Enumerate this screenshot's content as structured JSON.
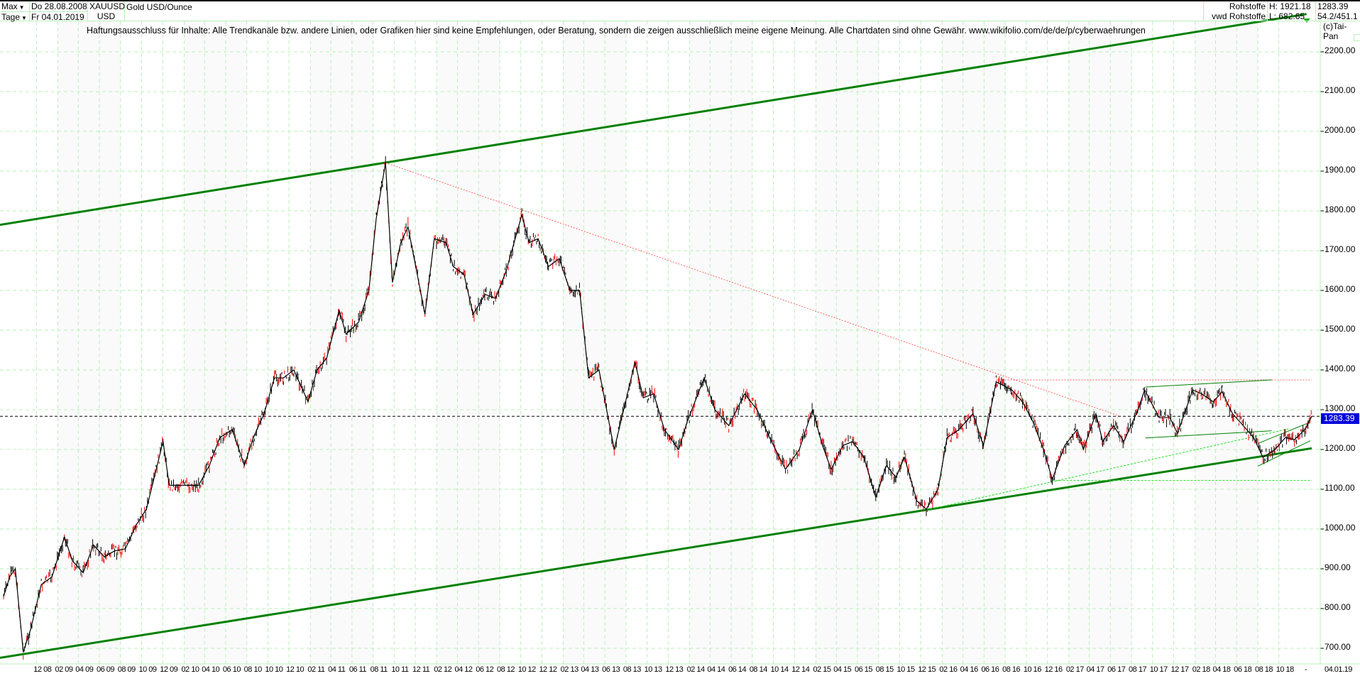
{
  "header": {
    "range_label": "Max",
    "interval_label": "Tage",
    "start_date": "Do 28.08.2008",
    "end_date": "Fr 04.01.2019",
    "symbol": "XAUUSD",
    "currency": "USD",
    "instrument_name": "Gold USD/Ounce",
    "category": "Rohstoffe",
    "source": "vwd Rohstoffe",
    "high": "H: 1921.18",
    "low": "L: 682.65",
    "last": "1283.39",
    "extra": "54.2/451.1"
  },
  "disclaimer": "Haftungsausschluss für Inhalte: Alle Trendkanäle bzw. andere Linien, oder Grafiken hier sind keine Empfehlungen, oder Beratung, sondern die zeigen ausschließlich meine eigene Meinung. Alle Chartdaten sind ohne Gewähr.  www.wikifolio.com/de/de/p/cyberwaehrungen",
  "copyright": "(c)Tai-Pan",
  "colors": {
    "grid": "#b8f0b8",
    "channel": "#008000",
    "down_candle": "#ff0000",
    "up_candle": "#000000",
    "last_price": "#0000dd",
    "resistance": "#ff6060"
  },
  "chart_data": {
    "type": "line",
    "title": "Gold USD/Ounce",
    "ylim": [
      700,
      2200
    ],
    "yticks": [
      "700.00",
      "800.00",
      "900.00",
      "1000.00",
      "1100.00",
      "1200.00",
      "1300.00",
      "1400.00",
      "1500.00",
      "1600.00",
      "1700.00",
      "1800.00",
      "1900.00",
      "2000.00",
      "2100.00",
      "2200.00"
    ],
    "xlim": [
      "2008-08-28",
      "2019-01-04"
    ],
    "xticks": [
      "12 08",
      "02 09",
      "04 09",
      "06 09",
      "08 09",
      "10 09",
      "12 09",
      "02 10",
      "04 10",
      "06 10",
      "08 10",
      "10 10",
      "12 10",
      "02 11",
      "04 11",
      "06 11",
      "08 11",
      "10 11",
      "12 11",
      "02 12",
      "04 12",
      "06 12",
      "08 12",
      "10 12",
      "12 12",
      "02 13",
      "04 13",
      "06 13",
      "08 13",
      "10 13",
      "12 13",
      "02 14",
      "04 14",
      "06 14",
      "08 14",
      "10 14",
      "12 14",
      "02 15",
      "04 15",
      "06 15",
      "08 15",
      "10 15",
      "12 15",
      "02 16",
      "04 16",
      "06 16",
      "08 16",
      "10 16",
      "12 16",
      "02 17",
      "04 17",
      "06 17",
      "08 17",
      "10 17",
      "12 17",
      "02 18",
      "04 18",
      "06 18",
      "08 18",
      "10 18"
    ],
    "xtick_end": "04.01.19",
    "xtick_sep": "-",
    "grid": true,
    "last_value": 1283.39,
    "series": [
      {
        "dates": [
          "2008-08-28",
          "2008-09-15",
          "2008-10-01",
          "2008-10-24",
          "2008-11-15",
          "2008-12-15",
          "2009-01-15",
          "2009-02-20",
          "2009-03-15",
          "2009-04-15",
          "2009-05-15",
          "2009-06-15",
          "2009-07-15",
          "2009-08-15",
          "2009-09-15",
          "2009-10-15",
          "2009-12-02",
          "2009-12-20",
          "2010-01-15",
          "2010-02-15",
          "2010-03-15",
          "2010-04-15",
          "2010-05-15",
          "2010-06-20",
          "2010-07-25",
          "2010-08-20",
          "2010-09-20",
          "2010-10-20",
          "2010-11-15",
          "2010-12-15",
          "2011-01-25",
          "2011-02-20",
          "2011-03-20",
          "2011-04-25",
          "2011-05-15",
          "2011-06-20",
          "2011-07-20",
          "2011-08-10",
          "2011-09-06",
          "2011-09-26",
          "2011-10-20",
          "2011-11-10",
          "2011-12-29",
          "2012-01-25",
          "2012-02-28",
          "2012-03-20",
          "2012-04-20",
          "2012-05-16",
          "2012-06-20",
          "2012-07-20",
          "2012-08-20",
          "2012-10-04",
          "2012-10-25",
          "2012-11-20",
          "2012-12-20",
          "2013-01-20",
          "2013-02-20",
          "2013-03-20",
          "2013-04-15",
          "2013-05-15",
          "2013-06-28",
          "2013-08-27",
          "2013-09-20",
          "2013-10-20",
          "2013-11-20",
          "2013-12-31",
          "2014-01-25",
          "2014-03-15",
          "2014-04-15",
          "2014-05-25",
          "2014-07-10",
          "2014-08-15",
          "2014-09-20",
          "2014-11-05",
          "2014-12-15",
          "2015-01-22",
          "2015-02-20",
          "2015-03-17",
          "2015-04-20",
          "2015-05-18",
          "2015-06-20",
          "2015-07-24",
          "2015-08-24",
          "2015-09-20",
          "2015-10-15",
          "2015-11-20",
          "2015-12-17",
          "2016-01-20",
          "2016-02-15",
          "2016-03-20",
          "2016-04-30",
          "2016-05-30",
          "2016-07-06",
          "2016-08-20",
          "2016-09-20",
          "2016-10-20",
          "2016-11-20",
          "2016-12-15",
          "2017-01-20",
          "2017-02-25",
          "2017-03-15",
          "2017-04-20",
          "2017-05-10",
          "2017-06-10",
          "2017-07-10",
          "2017-08-20",
          "2017-09-08",
          "2017-10-20",
          "2017-11-20",
          "2017-12-12",
          "2018-01-25",
          "2018-02-20",
          "2018-03-25",
          "2018-04-20",
          "2018-05-20",
          "2018-06-20",
          "2018-07-20",
          "2018-08-16",
          "2018-09-20",
          "2018-10-20",
          "2018-11-15",
          "2018-12-15",
          "2019-01-04"
        ],
        "values": [
          830,
          880,
          900,
          690,
          750,
          860,
          880,
          980,
          920,
          890,
          960,
          930,
          945,
          950,
          1010,
          1050,
          1220,
          1110,
          1110,
          1110,
          1110,
          1160,
          1230,
          1250,
          1160,
          1230,
          1290,
          1380,
          1380,
          1400,
          1320,
          1400,
          1430,
          1550,
          1490,
          1520,
          1600,
          1780,
          1921,
          1620,
          1720,
          1760,
          1540,
          1730,
          1720,
          1660,
          1640,
          1540,
          1590,
          1580,
          1650,
          1790,
          1720,
          1730,
          1660,
          1680,
          1600,
          1600,
          1380,
          1400,
          1200,
          1420,
          1330,
          1340,
          1250,
          1200,
          1270,
          1380,
          1300,
          1260,
          1340,
          1300,
          1230,
          1150,
          1200,
          1300,
          1210,
          1150,
          1210,
          1220,
          1180,
          1080,
          1160,
          1130,
          1180,
          1070,
          1050,
          1100,
          1230,
          1250,
          1290,
          1210,
          1370,
          1350,
          1320,
          1270,
          1200,
          1125,
          1210,
          1250,
          1200,
          1290,
          1220,
          1260,
          1220,
          1300,
          1350,
          1280,
          1280,
          1240,
          1350,
          1340,
          1320,
          1345,
          1290,
          1260,
          1230,
          1180,
          1200,
          1230,
          1225,
          1250,
          1283.39
        ]
      }
    ],
    "annotations": [
      {
        "type": "channel-upper",
        "from": [
          "2008-08-28",
          1765
        ],
        "to": [
          "2018-12-20",
          2295
        ]
      },
      {
        "type": "channel-lower",
        "from": [
          "2008-08-28",
          676
        ],
        "to": [
          "2019-01-04",
          1203
        ]
      },
      {
        "type": "resistance-dotted",
        "from": [
          "2011-09-06",
          1921
        ],
        "to": [
          "2017-06-25",
          1285
        ]
      },
      {
        "type": "resistance-horizontal-dotted",
        "from": [
          "2016-07-06",
          1375
        ],
        "to": [
          "2019-01-04",
          1375
        ]
      },
      {
        "type": "support-dotted",
        "from": [
          "2015-12-17",
          1048
        ],
        "to": [
          "2018-10-30",
          1252
        ]
      },
      {
        "type": "support-horizontal-dotted",
        "from": [
          "2016-12-15",
          1122
        ],
        "to": [
          "2019-01-04",
          1122
        ]
      },
      {
        "type": "triangle-upper",
        "from": [
          "2017-09-10",
          1357
        ],
        "to": [
          "2018-09-10",
          1375
        ]
      },
      {
        "type": "triangle-lower",
        "from": [
          "2017-09-10",
          1229
        ],
        "to": [
          "2018-09-10",
          1247
        ]
      },
      {
        "type": "wedge-upper",
        "from": [
          "2018-08-01",
          1215
        ],
        "to": [
          "2018-12-20",
          1265
        ]
      },
      {
        "type": "wedge-lower",
        "from": [
          "2018-08-01",
          1158
        ],
        "to": [
          "2018-12-31",
          1222
        ]
      }
    ]
  }
}
